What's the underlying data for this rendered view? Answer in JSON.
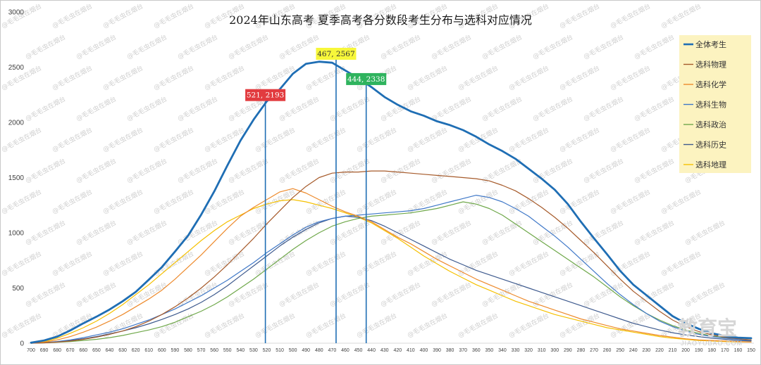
{
  "chart_data": {
    "type": "line",
    "title": "2024年山东高考 夏季高考各分数段考生分布与选科对应情况",
    "xlabel": "",
    "ylabel": "",
    "xlim": [
      700,
      150
    ],
    "ylim": [
      0,
      3000
    ],
    "x_reversed": true,
    "grid": false,
    "legend_position": "top-right",
    "y_ticks": [
      0,
      500,
      1000,
      1500,
      2000,
      2500,
      3000
    ],
    "x_ticks": [
      700,
      690,
      680,
      670,
      660,
      650,
      640,
      630,
      620,
      610,
      600,
      590,
      580,
      570,
      560,
      550,
      540,
      530,
      520,
      510,
      500,
      490,
      480,
      470,
      460,
      450,
      440,
      430,
      420,
      410,
      400,
      390,
      380,
      370,
      360,
      350,
      340,
      330,
      320,
      310,
      300,
      290,
      280,
      270,
      260,
      250,
      240,
      230,
      220,
      210,
      200,
      190,
      180,
      170,
      160,
      150
    ],
    "x": [
      700,
      690,
      680,
      670,
      660,
      650,
      640,
      630,
      620,
      610,
      600,
      590,
      580,
      570,
      560,
      550,
      540,
      530,
      520,
      510,
      500,
      490,
      480,
      470,
      460,
      450,
      440,
      430,
      420,
      410,
      400,
      390,
      380,
      370,
      360,
      350,
      340,
      330,
      320,
      310,
      300,
      290,
      280,
      270,
      260,
      250,
      240,
      230,
      220,
      210,
      200,
      190,
      180,
      170,
      160,
      150
    ],
    "series": [
      {
        "name": "全体考生",
        "color": "#1f6eb4",
        "values": [
          5,
          25,
          60,
          115,
          180,
          240,
          305,
          380,
          465,
          575,
          690,
          830,
          975,
          1165,
          1375,
          1610,
          1835,
          2025,
          2190,
          2300,
          2440,
          2530,
          2550,
          2540,
          2470,
          2400,
          2320,
          2230,
          2160,
          2100,
          2060,
          2010,
          1975,
          1930,
          1870,
          1800,
          1740,
          1670,
          1580,
          1490,
          1390,
          1260,
          1100,
          950,
          805,
          655,
          530,
          435,
          340,
          245,
          180,
          130,
          90,
          65,
          50,
          45
        ]
      },
      {
        "name": "选科物理",
        "color": "#a65a2a",
        "values": [
          0,
          3,
          10,
          20,
          35,
          55,
          80,
          110,
          150,
          200,
          260,
          330,
          410,
          500,
          600,
          710,
          830,
          950,
          1080,
          1200,
          1320,
          1420,
          1500,
          1540,
          1550,
          1550,
          1560,
          1560,
          1550,
          1540,
          1530,
          1520,
          1510,
          1500,
          1490,
          1470,
          1430,
          1380,
          1310,
          1230,
          1140,
          1040,
          930,
          820,
          700,
          580,
          470,
          380,
          290,
          210,
          150,
          105,
          75,
          55,
          40,
          30
        ]
      },
      {
        "name": "选科化学",
        "color": "#ed8a2c",
        "values": [
          0,
          8,
          30,
          60,
          100,
          145,
          200,
          260,
          330,
          400,
          480,
          580,
          690,
          800,
          920,
          1040,
          1150,
          1230,
          1300,
          1370,
          1400,
          1360,
          1300,
          1240,
          1190,
          1150,
          1100,
          1030,
          960,
          900,
          830,
          760,
          700,
          640,
          580,
          530,
          480,
          430,
          380,
          340,
          300,
          260,
          220,
          190,
          160,
          130,
          110,
          90,
          70,
          55,
          40,
          30,
          25,
          20,
          15,
          10
        ]
      },
      {
        "name": "选科生物",
        "color": "#3f78c8",
        "values": [
          0,
          5,
          15,
          30,
          50,
          75,
          100,
          130,
          170,
          210,
          260,
          310,
          370,
          430,
          500,
          570,
          650,
          730,
          820,
          900,
          980,
          1050,
          1100,
          1130,
          1150,
          1160,
          1170,
          1180,
          1190,
          1200,
          1220,
          1250,
          1280,
          1310,
          1340,
          1320,
          1280,
          1220,
          1150,
          1060,
          970,
          870,
          760,
          650,
          540,
          440,
          350,
          270,
          200,
          150,
          110,
          80,
          60,
          45,
          35,
          25
        ]
      },
      {
        "name": "选科政治",
        "color": "#6fa84a",
        "values": [
          0,
          3,
          8,
          15,
          25,
          35,
          50,
          70,
          95,
          120,
          150,
          190,
          240,
          290,
          350,
          420,
          500,
          580,
          670,
          760,
          850,
          930,
          1000,
          1060,
          1100,
          1130,
          1150,
          1160,
          1170,
          1180,
          1200,
          1220,
          1250,
          1280,
          1260,
          1220,
          1160,
          1080,
          1000,
          920,
          840,
          760,
          680,
          600,
          510,
          420,
          340,
          270,
          210,
          160,
          120,
          90,
          65,
          50,
          40,
          30
        ]
      },
      {
        "name": "选科历史",
        "color": "#3e5a8e",
        "values": [
          0,
          5,
          12,
          25,
          40,
          60,
          85,
          110,
          140,
          175,
          215,
          260,
          310,
          370,
          440,
          520,
          610,
          700,
          790,
          880,
          960,
          1030,
          1090,
          1130,
          1150,
          1140,
          1110,
          1060,
          1000,
          940,
          880,
          820,
          760,
          710,
          660,
          620,
          580,
          540,
          500,
          460,
          420,
          380,
          340,
          300,
          260,
          220,
          180,
          150,
          120,
          95,
          75,
          60,
          45,
          35,
          25,
          20
        ]
      },
      {
        "name": "选科地理",
        "color": "#f5c000",
        "values": [
          0,
          12,
          45,
          90,
          140,
          200,
          270,
          350,
          440,
          530,
          630,
          730,
          830,
          930,
          1020,
          1100,
          1160,
          1220,
          1260,
          1290,
          1300,
          1280,
          1250,
          1220,
          1180,
          1140,
          1090,
          1020,
          950,
          870,
          790,
          720,
          650,
          590,
          530,
          480,
          430,
          380,
          340,
          300,
          260,
          230,
          200,
          170,
          140,
          120,
          100,
          80,
          60,
          45,
          35,
          25,
          20,
          15,
          12,
          10
        ]
      }
    ],
    "annotations": [
      {
        "x": 521,
        "y": 2193,
        "label": "521, 2193",
        "color": "#e23b3f",
        "text_color": "#ffffff"
      },
      {
        "x": 467,
        "y": 2567,
        "label": "467, 2567",
        "color": "#f7f73a",
        "text_color": "#333333"
      },
      {
        "x": 444,
        "y": 2338,
        "label": "444, 2338",
        "color": "#2fb35e",
        "text_color": "#ffffff"
      }
    ],
    "legend_background": "#fcf3c0"
  },
  "watermark": "@毛毛虫在烟台",
  "logo": {
    "name": "教育宝",
    "url_text": "JIAOYUBAO.COM"
  }
}
